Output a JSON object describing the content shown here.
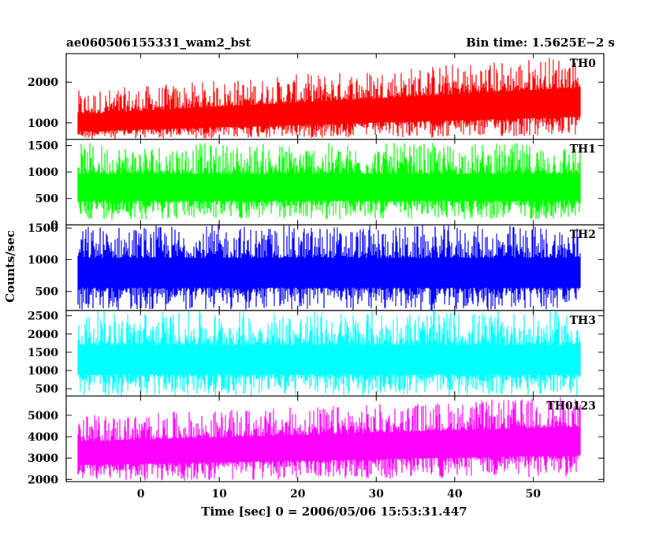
{
  "header": {
    "object_name": "ae060506155331_wam2_bst",
    "bin_time": "Bin time: 1.5625E−2 s"
  },
  "chart_data": {
    "type": "line",
    "title": "ae060506155331_wam2_bst",
    "subtitle": "Bin time: 1.5625E−2 s",
    "xlabel": "Time [sec] 0 = 2006/05/06 15:53:31.447",
    "ylabel": "Counts/sec",
    "xlim": [
      -9.5,
      59
    ],
    "x_data_range": [
      -8,
      56
    ],
    "x_ticks": [
      0,
      10,
      20,
      30,
      40,
      50
    ],
    "grid": false,
    "panels": [
      {
        "name": "TH0",
        "color": "#ff0000",
        "ylim": [
          600,
          2700
        ],
        "y_ticks": [
          1000,
          2000
        ],
        "series_trend": {
          "x": [
            -8,
            56
          ],
          "mean": [
            900,
            1420
          ],
          "min": [
            600,
            650
          ],
          "max": [
            1800,
            2700
          ]
        }
      },
      {
        "name": "TH1",
        "color": "#00ff00",
        "ylim": [
          0,
          1620
        ],
        "y_ticks": [
          0,
          500,
          1000,
          1500
        ],
        "series_trend": {
          "x": [
            -8,
            56
          ],
          "mean": [
            650,
            650
          ],
          "min": [
            100,
            100
          ],
          "max": [
            1550,
            1550
          ]
        }
      },
      {
        "name": "TH2",
        "color": "#0000ff",
        "ylim": [
          200,
          1550
        ],
        "y_ticks": [
          500,
          1000,
          1500
        ],
        "series_trend": {
          "x": [
            -8,
            56
          ],
          "mean": [
            750,
            750
          ],
          "min": [
            200,
            200
          ],
          "max": [
            1550,
            1550
          ]
        }
      },
      {
        "name": "TH3",
        "color": "#00ffff",
        "ylim": [
          300,
          2650
        ],
        "y_ticks": [
          500,
          1000,
          1500,
          2000,
          2500
        ],
        "series_trend": {
          "x": [
            -8,
            56
          ],
          "mean": [
            1200,
            1200
          ],
          "min": [
            300,
            300
          ],
          "max": [
            2650,
            2650
          ]
        }
      },
      {
        "name": "TH0123",
        "color": "#ff00ff",
        "ylim": [
          1900,
          5900
        ],
        "y_ticks": [
          2000,
          3000,
          4000,
          5000
        ],
        "series_trend": {
          "x": [
            -8,
            56
          ],
          "mean": [
            3100,
            3700
          ],
          "min": [
            1900,
            2100
          ],
          "max": [
            5000,
            5900
          ]
        }
      }
    ]
  }
}
